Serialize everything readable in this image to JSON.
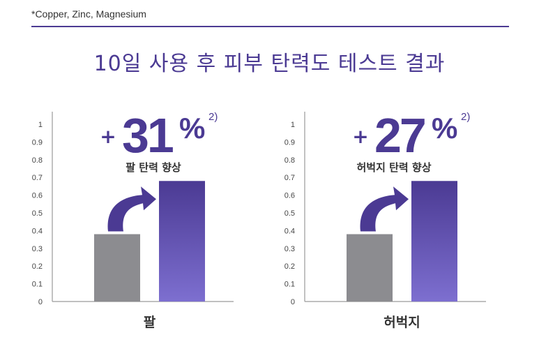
{
  "footnote": "*Copper, Zinc, Magnesium",
  "title": "10일 사용 후 피부 탄력도 테스트 결과",
  "colors": {
    "accent": "#4b3a93",
    "bar_before": "#8c8c90",
    "bar_after_top": "#4b3a93",
    "bar_after_bottom": "#7d6fd0"
  },
  "chart_data": [
    {
      "type": "bar",
      "categories": [
        "",
        ""
      ],
      "values": [
        0.38,
        0.68
      ],
      "ylim": [
        0,
        1
      ],
      "yticks": [
        "0",
        "0.1",
        "0.2",
        "0.3",
        "0.4",
        "0.5",
        "0.6",
        "0.7",
        "0.8",
        "0.9",
        "1"
      ],
      "xlabel": "팔",
      "highlight": {
        "plus": "+",
        "value": "31",
        "percent": "%",
        "superscript": "2)",
        "caption": "팔 탄력 향상"
      }
    },
    {
      "type": "bar",
      "categories": [
        "",
        ""
      ],
      "values": [
        0.38,
        0.68
      ],
      "ylim": [
        0,
        1
      ],
      "yticks": [
        "0",
        "0.1",
        "0.2",
        "0.3",
        "0.4",
        "0.5",
        "0.6",
        "0.7",
        "0.8",
        "0.9",
        "1"
      ],
      "xlabel": "허벅지",
      "highlight": {
        "plus": "+",
        "value": "27",
        "percent": "%",
        "superscript": "2)",
        "caption": "허벅지 탄력 향상"
      }
    }
  ]
}
